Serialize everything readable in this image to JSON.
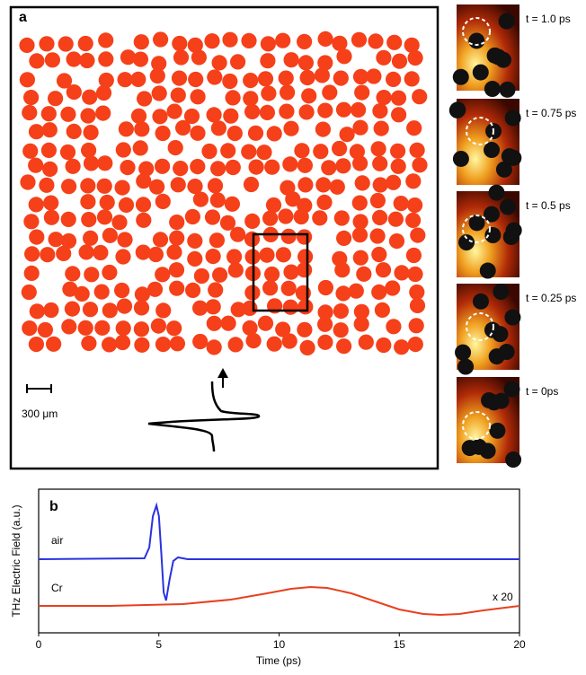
{
  "panel_a": {
    "label": "a",
    "scale_bar": "300 μm",
    "snapshots": [
      "t = 1.0 ps",
      "t = 0.75 ps",
      "t = 0.5 ps",
      "t = 0.25 ps",
      "t = 0ps"
    ]
  },
  "chart_data": {
    "type": "line",
    "label": "b",
    "x_label": "Time (ps)",
    "y_label": "THz Electric Field (a.u.)",
    "xlim": [
      0,
      20
    ],
    "xticks": [
      0,
      5,
      10,
      15,
      20
    ],
    "ylim": [
      0,
      1.6
    ],
    "series": [
      {
        "name": "air",
        "color": "#2a32e0",
        "x": [
          0,
          4.4,
          4.6,
          4.75,
          4.9,
          5.0,
          5.1,
          5.2,
          5.3,
          5.45,
          5.6,
          5.8,
          6.2,
          20
        ],
        "values": [
          0.82,
          0.83,
          0.95,
          1.3,
          1.42,
          1.3,
          0.9,
          0.45,
          0.36,
          0.6,
          0.8,
          0.84,
          0.82,
          0.82
        ]
      },
      {
        "name": "Cr",
        "color": "#e8401e",
        "x": [
          0,
          3,
          6,
          8,
          9.5,
          10.5,
          11.3,
          12,
          13,
          14,
          15,
          16,
          16.7,
          17.5,
          18.5,
          20
        ],
        "values": [
          0.3,
          0.3,
          0.32,
          0.37,
          0.44,
          0.49,
          0.51,
          0.5,
          0.44,
          0.35,
          0.26,
          0.21,
          0.2,
          0.21,
          0.25,
          0.3
        ]
      }
    ],
    "annotations": [
      "x 20"
    ]
  }
}
